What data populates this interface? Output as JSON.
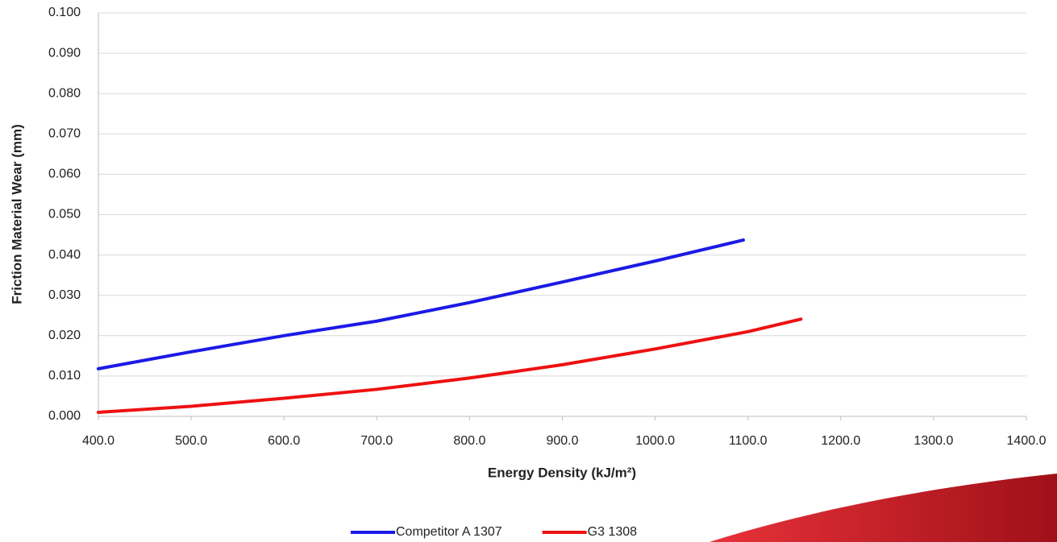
{
  "chart_data": {
    "type": "line",
    "x_label": "Energy Density (kJ/m²)",
    "y_label": "Friction Material Wear (mm)",
    "series": [
      {
        "name": "Competitor A 1307",
        "color": "#1a1ae6",
        "x": [
          400,
          500,
          600,
          700,
          800,
          900,
          1000,
          1095
        ],
        "values": [
          0.0118,
          0.016,
          0.02,
          0.0236,
          0.0282,
          0.0333,
          0.0385,
          0.0437
        ]
      },
      {
        "name": "G3 1308",
        "color": "#ee1111",
        "x": [
          400,
          500,
          600,
          700,
          800,
          900,
          1000,
          1100,
          1157
        ],
        "values": [
          0.001,
          0.0025,
          0.0045,
          0.0067,
          0.0095,
          0.0128,
          0.0167,
          0.021,
          0.0241
        ]
      }
    ],
    "xlim": [
      400,
      1400
    ],
    "xticks": [
      {
        "value": 400,
        "label": "400.0"
      },
      {
        "value": 500,
        "label": "500.0"
      },
      {
        "value": 600,
        "label": "600.0"
      },
      {
        "value": 700,
        "label": "700.0"
      },
      {
        "value": 800,
        "label": "800.0"
      },
      {
        "value": 900,
        "label": "900.0"
      },
      {
        "value": 1000,
        "label": "1000.0"
      },
      {
        "value": 1100,
        "label": "1100.0"
      },
      {
        "value": 1200,
        "label": "1200.0"
      },
      {
        "value": 1300,
        "label": "1300.0"
      },
      {
        "value": 1400,
        "label": "1400.0"
      }
    ],
    "ylim": [
      0,
      0.1
    ],
    "yticks": [
      {
        "value": 0,
        "label": "0.000"
      },
      {
        "value": 0.01,
        "label": "0.010"
      },
      {
        "value": 0.02,
        "label": "0.020"
      },
      {
        "value": 0.03,
        "label": "0.030"
      },
      {
        "value": 0.04,
        "label": "0.040"
      },
      {
        "value": 0.05,
        "label": "0.050"
      },
      {
        "value": 0.06,
        "label": "0.060"
      },
      {
        "value": 0.07,
        "label": "0.070"
      },
      {
        "value": 0.08,
        "label": "0.080"
      },
      {
        "value": 0.09,
        "label": "0.090"
      },
      {
        "value": 0.1,
        "label": "0.100"
      }
    ],
    "grid": true,
    "legend": "bottom"
  }
}
